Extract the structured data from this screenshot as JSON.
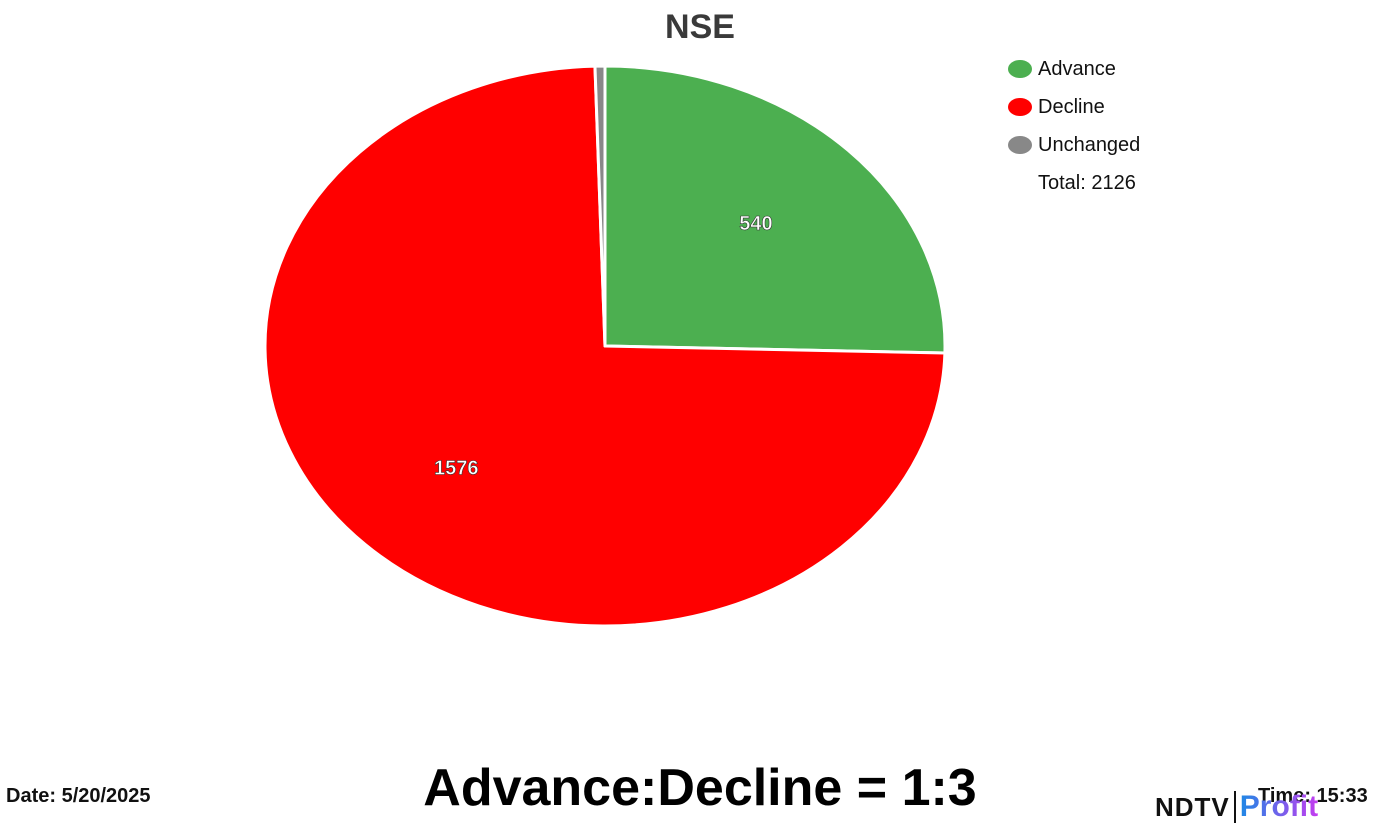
{
  "chart_data": {
    "type": "pie",
    "title": "NSE",
    "slices": [
      {
        "label": "Advance",
        "value": 540,
        "color": "#4caf50",
        "show_value": true
      },
      {
        "label": "Decline",
        "value": 1576,
        "color": "#ff0000",
        "show_value": true
      },
      {
        "label": "Unchanged",
        "value": 10,
        "color": "#888888",
        "show_value": false
      }
    ],
    "legend_position": "top-right",
    "total_label": "Total: 2126"
  },
  "footer": {
    "date": "Date: 5/20/2025",
    "ratio": "Advance:Decline = 1:3",
    "time": "Time: 15:33"
  },
  "logo": {
    "ndtv": "NDTV",
    "profit": "Profit"
  }
}
